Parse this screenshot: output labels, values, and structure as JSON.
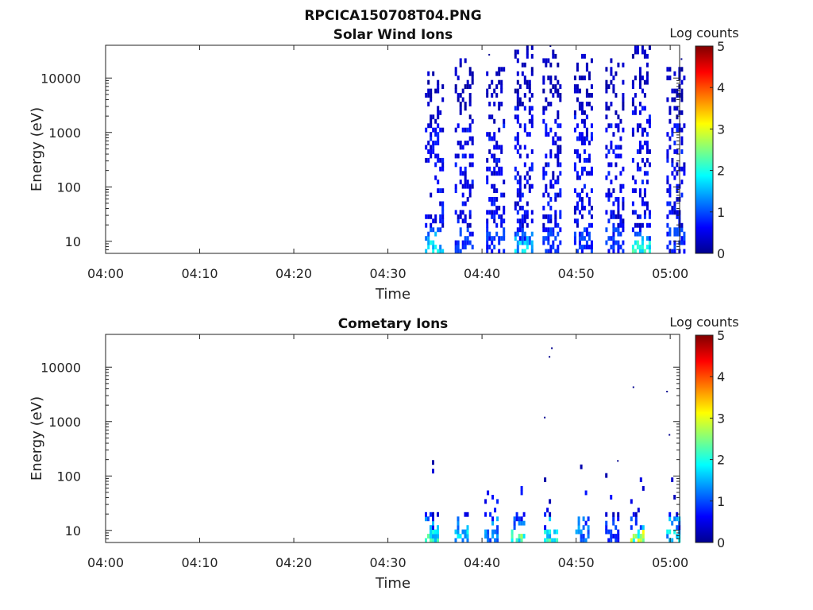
{
  "figure": {
    "title": "RPCICA150708T04.PNG"
  },
  "chart_data": [
    {
      "type": "heatmap",
      "title": "Solar Wind Ions",
      "xlabel": "Time",
      "ylabel": "Energy (eV)",
      "x_ticks": [
        "04:00",
        "04:10",
        "04:20",
        "04:30",
        "04:40",
        "04:50",
        "05:00"
      ],
      "y_ticks": [
        "10",
        "100",
        "1000",
        "10000"
      ],
      "y_scale": "log",
      "ylim": [
        6,
        40000
      ],
      "xlim": [
        "04:00",
        "05:01"
      ],
      "colorbar": {
        "label": "Log counts",
        "range": [
          0,
          5
        ],
        "ticks": [
          "0",
          "1",
          "2",
          "3",
          "4",
          "5"
        ]
      },
      "activity_columns": [
        {
          "time": "04:34:50",
          "max_energy": 15000,
          "peak_log_counts": 2.0
        },
        {
          "time": "04:38:00",
          "max_energy": 20000,
          "peak_log_counts": 1.0
        },
        {
          "time": "04:41:20",
          "max_energy": 15000,
          "peak_log_counts": 1.0
        },
        {
          "time": "04:44:20",
          "max_energy": 35000,
          "peak_log_counts": 2.0
        },
        {
          "time": "04:47:20",
          "max_energy": 30000,
          "peak_log_counts": 1.0
        },
        {
          "time": "04:50:40",
          "max_energy": 25000,
          "peak_log_counts": 1.0
        },
        {
          "time": "04:54:00",
          "max_energy": 20000,
          "peak_log_counts": 1.0
        },
        {
          "time": "04:56:50",
          "max_energy": 35000,
          "peak_log_counts": 2.5
        },
        {
          "time": "05:00:30",
          "max_energy": 15000,
          "peak_log_counts": 1.0
        }
      ]
    },
    {
      "type": "heatmap",
      "title": "Cometary Ions",
      "xlabel": "Time",
      "ylabel": "Energy (eV)",
      "x_ticks": [
        "04:00",
        "04:10",
        "04:20",
        "04:30",
        "04:40",
        "04:50",
        "05:00"
      ],
      "y_ticks": [
        "10",
        "100",
        "1000",
        "10000"
      ],
      "y_scale": "log",
      "ylim": [
        6,
        40000
      ],
      "xlim": [
        "04:00",
        "05:01"
      ],
      "colorbar": {
        "label": "Log counts",
        "range": [
          0,
          5
        ],
        "ticks": [
          "0",
          "1",
          "2",
          "3",
          "4",
          "5"
        ]
      },
      "activity_columns": [
        {
          "time": "04:34:40",
          "max_energy": 200,
          "peak_log_counts": 2.5
        },
        {
          "time": "04:37:50",
          "max_energy": 150,
          "peak_log_counts": 2.0
        },
        {
          "time": "04:41:00",
          "max_energy": 150,
          "peak_log_counts": 1.5
        },
        {
          "time": "04:43:50",
          "max_energy": 150,
          "peak_log_counts": 2.8
        },
        {
          "time": "04:47:20",
          "max_energy": 200,
          "peak_log_counts": 2.5
        },
        {
          "time": "04:50:40",
          "max_energy": 150,
          "peak_log_counts": 1.5
        },
        {
          "time": "04:53:50",
          "max_energy": 150,
          "peak_log_counts": 1.0
        },
        {
          "time": "04:56:30",
          "max_energy": 300,
          "peak_log_counts": 3.2
        },
        {
          "time": "05:00:20",
          "max_energy": 120,
          "peak_log_counts": 2.0
        }
      ]
    }
  ]
}
